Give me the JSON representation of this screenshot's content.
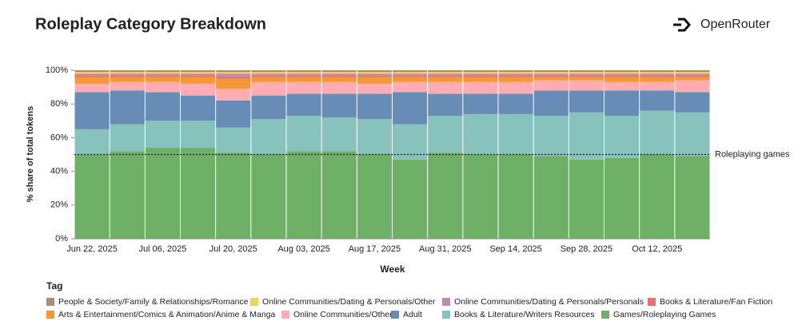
{
  "brand": "OpenRouter",
  "chart_data": {
    "type": "stacked_bar",
    "title": "Roleplay Category Breakdown",
    "x_label": "Week",
    "y_label": "% share of total tokens",
    "legend_title": "Tag",
    "categories": [
      "Jun 22, 2025",
      null,
      "Jul 06, 2025",
      null,
      "Jul 20, 2025",
      null,
      "Aug 03, 2025",
      null,
      "Aug 17, 2025",
      null,
      "Aug 31, 2025",
      null,
      "Sep 14, 2025",
      null,
      "Sep 28, 2025",
      null,
      "Oct 12, 2025",
      null
    ],
    "ylim": [
      0,
      100
    ],
    "yticks": [
      {
        "value": 0,
        "label": "0%"
      },
      {
        "value": 20,
        "label": "20%"
      },
      {
        "value": 40,
        "label": "40%"
      },
      {
        "value": 60,
        "label": "60%"
      },
      {
        "value": 80,
        "label": "80%"
      },
      {
        "value": 100,
        "label": "100%"
      }
    ],
    "annotation": {
      "label": "Roleplaying games",
      "value": 50
    },
    "series": [
      {
        "name": "Games/Roleplaying Games",
        "color": "#54a24b",
        "values": [
          50,
          52,
          54,
          54,
          51,
          50,
          52,
          52,
          50,
          47,
          51,
          50,
          50,
          49,
          47,
          48,
          50,
          49
        ]
      },
      {
        "name": "Books & Literature/Writers Resources",
        "color": "#72b7b2",
        "values": [
          15,
          16,
          16,
          16,
          15,
          21,
          21,
          20,
          21,
          21,
          22,
          24,
          24,
          24,
          28,
          25,
          26,
          26
        ]
      },
      {
        "name": "Adult",
        "color": "#4c78a8",
        "values": [
          22,
          20,
          17,
          15,
          16,
          14,
          13,
          14,
          15,
          19,
          13,
          12,
          12,
          15,
          13,
          15,
          12,
          12
        ]
      },
      {
        "name": "Online Communities/Other",
        "color": "#ff9da6",
        "values": [
          5,
          5,
          6,
          7,
          7,
          8,
          7,
          7,
          6,
          6,
          7,
          7,
          7,
          6,
          6,
          5,
          5,
          7
        ]
      },
      {
        "name": "Arts & Entertainment/Comics & Animation/Anime & Manga",
        "color": "#f58518",
        "values": [
          4,
          3,
          3,
          4,
          6,
          3,
          3,
          3,
          4,
          3,
          3,
          3,
          3,
          2,
          2,
          3,
          3,
          2
        ]
      },
      {
        "name": "Books & Literature/Fan Fiction",
        "color": "#e45756",
        "values": [
          1,
          1,
          1,
          1,
          1,
          1,
          1,
          1,
          1,
          1,
          1,
          1,
          1,
          1,
          1,
          1,
          1,
          1
        ]
      },
      {
        "name": "Online Communities/Dating & Personals/Personals",
        "color": "#b279a2",
        "values": [
          1,
          1,
          1,
          1,
          2,
          1,
          1,
          1,
          1,
          1,
          1,
          1,
          1,
          1,
          1,
          1,
          1,
          1
        ]
      },
      {
        "name": "Online Communities/Dating & Personals/Other",
        "color": "#eeca3b",
        "values": [
          1,
          1,
          1,
          1,
          1,
          1,
          1,
          1,
          1,
          1,
          1,
          1,
          1,
          1,
          1,
          1,
          1,
          1
        ]
      },
      {
        "name": "People & Society/Family & Relationships/Romance",
        "color": "#9d755d",
        "values": [
          1,
          1,
          1,
          1,
          1,
          1,
          1,
          1,
          1,
          1,
          1,
          1,
          1,
          1,
          1,
          1,
          1,
          1
        ]
      }
    ]
  }
}
